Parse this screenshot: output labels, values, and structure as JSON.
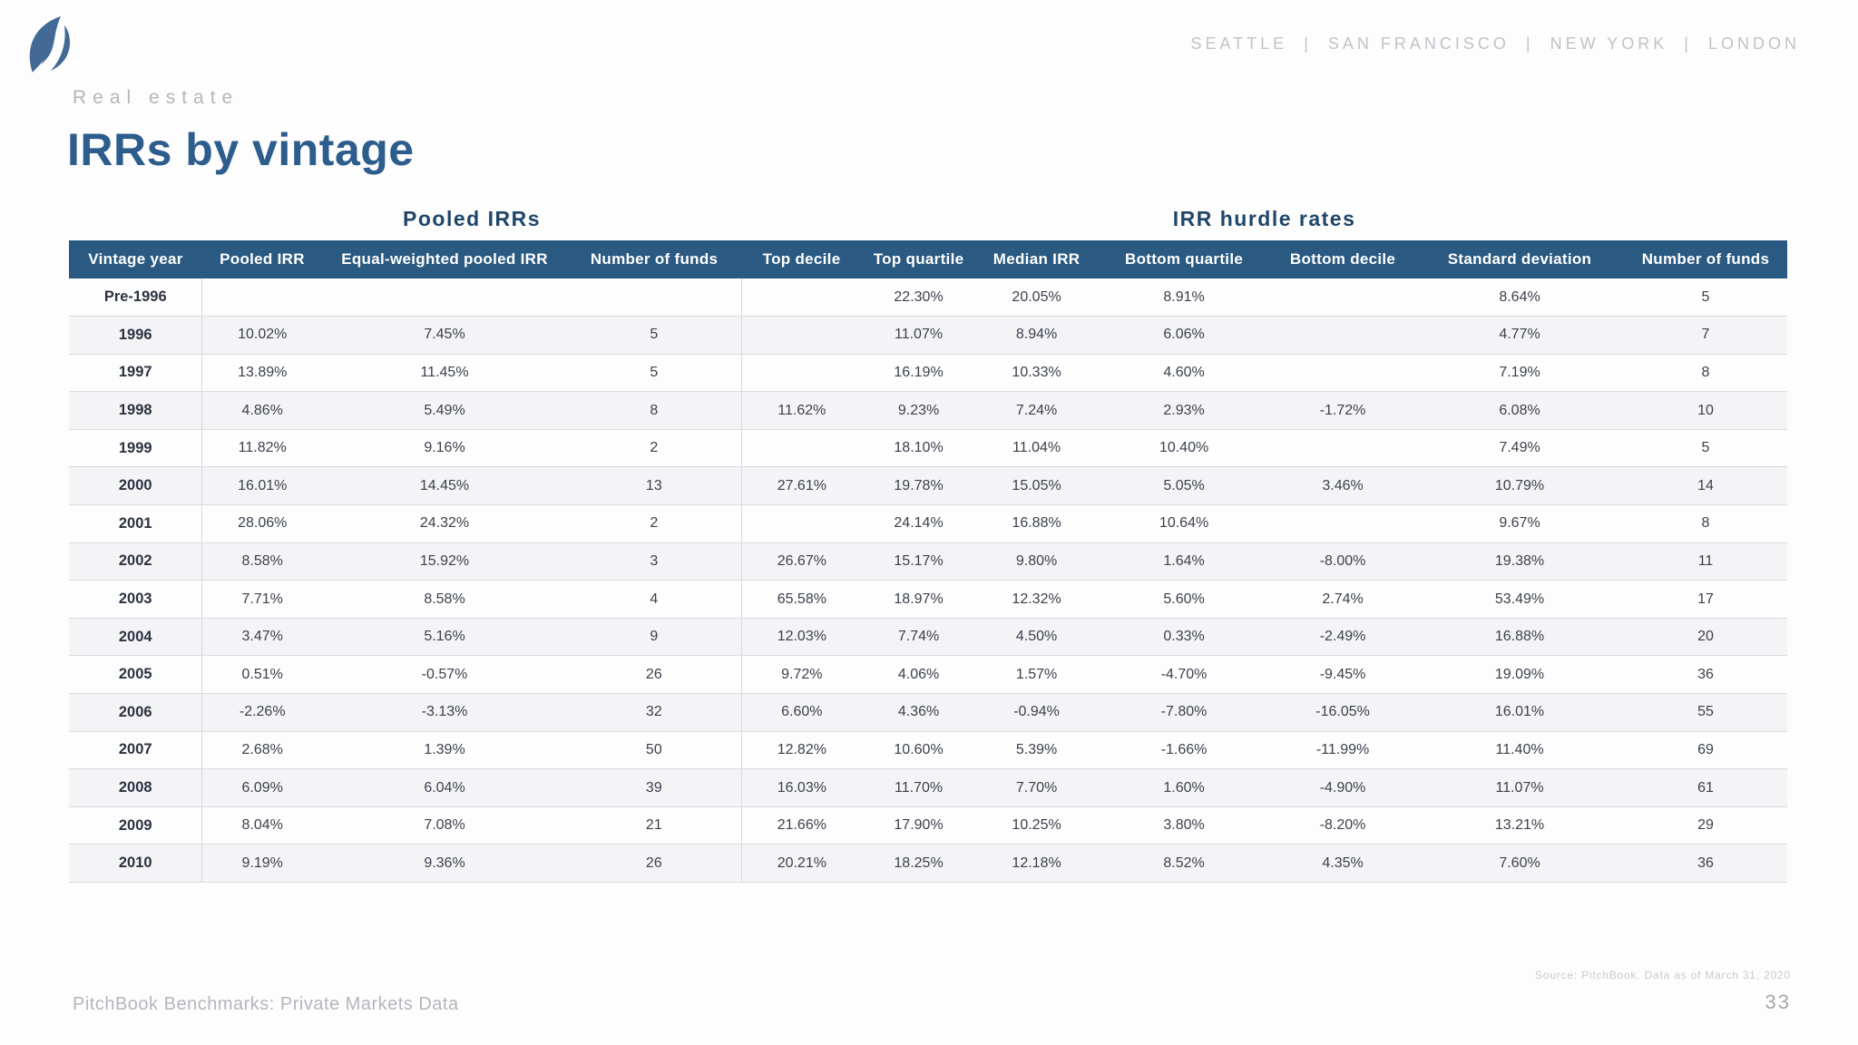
{
  "header": {
    "cities": [
      "SEATTLE",
      "SAN FRANCISCO",
      "NEW YORK",
      "LONDON"
    ],
    "cities_separator": "|",
    "eyebrow": "Real estate",
    "title": "IRRs by vintage"
  },
  "table": {
    "group_headers": [
      {
        "label": "Pooled IRRs"
      },
      {
        "label": "IRR hurdle rates"
      }
    ],
    "columns": [
      "Vintage year",
      "Pooled IRR",
      "Equal-weighted pooled IRR",
      "Number of funds",
      "Top decile",
      "Top quartile",
      "Median IRR",
      "Bottom quartile",
      "Bottom decile",
      "Standard deviation",
      "Number of funds"
    ],
    "rows": [
      [
        "Pre-1996",
        "",
        "",
        "",
        "",
        "22.30%",
        "20.05%",
        "8.91%",
        "",
        "8.64%",
        "5"
      ],
      [
        "1996",
        "10.02%",
        "7.45%",
        "5",
        "",
        "11.07%",
        "8.94%",
        "6.06%",
        "",
        "4.77%",
        "7"
      ],
      [
        "1997",
        "13.89%",
        "11.45%",
        "5",
        "",
        "16.19%",
        "10.33%",
        "4.60%",
        "",
        "7.19%",
        "8"
      ],
      [
        "1998",
        "4.86%",
        "5.49%",
        "8",
        "11.62%",
        "9.23%",
        "7.24%",
        "2.93%",
        "-1.72%",
        "6.08%",
        "10"
      ],
      [
        "1999",
        "11.82%",
        "9.16%",
        "2",
        "",
        "18.10%",
        "11.04%",
        "10.40%",
        "",
        "7.49%",
        "5"
      ],
      [
        "2000",
        "16.01%",
        "14.45%",
        "13",
        "27.61%",
        "19.78%",
        "15.05%",
        "5.05%",
        "3.46%",
        "10.79%",
        "14"
      ],
      [
        "2001",
        "28.06%",
        "24.32%",
        "2",
        "",
        "24.14%",
        "16.88%",
        "10.64%",
        "",
        "9.67%",
        "8"
      ],
      [
        "2002",
        "8.58%",
        "15.92%",
        "3",
        "26.67%",
        "15.17%",
        "9.80%",
        "1.64%",
        "-8.00%",
        "19.38%",
        "11"
      ],
      [
        "2003",
        "7.71%",
        "8.58%",
        "4",
        "65.58%",
        "18.97%",
        "12.32%",
        "5.60%",
        "2.74%",
        "53.49%",
        "17"
      ],
      [
        "2004",
        "3.47%",
        "5.16%",
        "9",
        "12.03%",
        "7.74%",
        "4.50%",
        "0.33%",
        "-2.49%",
        "16.88%",
        "20"
      ],
      [
        "2005",
        "0.51%",
        "-0.57%",
        "26",
        "9.72%",
        "4.06%",
        "1.57%",
        "-4.70%",
        "-9.45%",
        "19.09%",
        "36"
      ],
      [
        "2006",
        "-2.26%",
        "-3.13%",
        "32",
        "6.60%",
        "4.36%",
        "-0.94%",
        "-7.80%",
        "-16.05%",
        "16.01%",
        "55"
      ],
      [
        "2007",
        "2.68%",
        "1.39%",
        "50",
        "12.82%",
        "10.60%",
        "5.39%",
        "-1.66%",
        "-11.99%",
        "11.40%",
        "69"
      ],
      [
        "2008",
        "6.09%",
        "6.04%",
        "39",
        "16.03%",
        "11.70%",
        "7.70%",
        "1.60%",
        "-4.90%",
        "11.07%",
        "61"
      ],
      [
        "2009",
        "8.04%",
        "7.08%",
        "21",
        "21.66%",
        "17.90%",
        "10.25%",
        "3.80%",
        "-8.20%",
        "13.21%",
        "29"
      ],
      [
        "2010",
        "9.19%",
        "9.36%",
        "26",
        "20.21%",
        "18.25%",
        "12.18%",
        "8.52%",
        "4.35%",
        "7.60%",
        "36"
      ]
    ],
    "column_widths_pct": [
      7.76,
      6.97,
      14.26,
      10.14,
      7.02,
      6.6,
      7.13,
      10.03,
      8.45,
      12.14,
      9.5
    ]
  },
  "footer": {
    "left": "PitchBook Benchmarks: Private Markets Data",
    "source": "Source: PitchBook. Data as of March 31, 2020",
    "page": "33"
  },
  "colors": {
    "header_bg": "#2a5a82",
    "title_blue": "#2c5d8d",
    "group_title": "#1f4568",
    "year_text": "#2b3340",
    "cell_text": "#3c414b",
    "stripe": "#f4f4f7",
    "row_border": "#dcdce1",
    "col_border": "#d8d8dd",
    "muted": "#b5b5bc",
    "cities": "#c2c2c8",
    "source": "#c9c9cf",
    "page": "#a6a6ae",
    "logo": "#426a94"
  }
}
